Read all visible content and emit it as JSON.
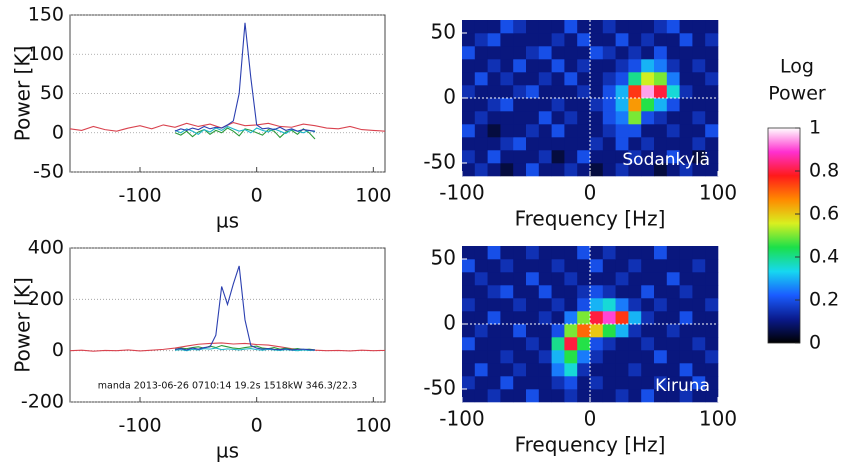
{
  "chart_data": [
    {
      "type": "line",
      "ylabel": "Power [K]",
      "xlabel": "µs",
      "xlim": [
        -160,
        110
      ],
      "ylim": [
        -50,
        150
      ],
      "xticks": [
        -100,
        0,
        100
      ],
      "yticks": [
        -50,
        0,
        50,
        100,
        150
      ],
      "grid": true,
      "series": [
        {
          "color": "#d9434f",
          "x": [
            -160,
            -150,
            -140,
            -130,
            -120,
            -110,
            -100,
            -90,
            -80,
            -70,
            -60,
            -50,
            -40,
            -30,
            -20,
            -10,
            0,
            10,
            20,
            30,
            40,
            50,
            60,
            70,
            80,
            90,
            100,
            110
          ],
          "values": [
            5,
            3,
            8,
            4,
            2,
            6,
            9,
            5,
            10,
            7,
            12,
            8,
            11,
            6,
            13,
            9,
            10,
            12,
            8,
            7,
            11,
            9,
            6,
            5,
            8,
            4,
            3,
            2
          ]
        },
        {
          "color": "#2a9a3a",
          "x": [
            -70,
            -65,
            -60,
            -55,
            -50,
            -45,
            -40,
            -35,
            -30,
            -25,
            -20,
            -15,
            -10,
            -5,
            0,
            5,
            10,
            15,
            20,
            25,
            30,
            35,
            40,
            45,
            50
          ],
          "values": [
            0,
            -3,
            2,
            -5,
            1,
            4,
            -2,
            3,
            0,
            6,
            2,
            -4,
            5,
            3,
            0,
            -3,
            4,
            2,
            -6,
            1,
            3,
            -2,
            5,
            0,
            -8
          ]
        },
        {
          "color": "#1fb5c9",
          "x": [
            -70,
            -65,
            -60,
            -55,
            -50,
            -45,
            -40,
            -35,
            -30,
            -25,
            -20,
            -15,
            -10,
            -5,
            0,
            5,
            10,
            15,
            20,
            25,
            30,
            35,
            40,
            45,
            50
          ],
          "values": [
            3,
            0,
            5,
            2,
            -2,
            4,
            1,
            6,
            3,
            8,
            5,
            2,
            4,
            0,
            6,
            3,
            1,
            5,
            2,
            -1,
            4,
            2,
            0,
            3,
            1
          ]
        },
        {
          "color": "#2b3fb0",
          "x": [
            -70,
            -65,
            -60,
            -55,
            -50,
            -45,
            -40,
            -35,
            -30,
            -25,
            -20,
            -15,
            -10,
            -5,
            0,
            5,
            10,
            15,
            20,
            25,
            30,
            35,
            40,
            45,
            50
          ],
          "values": [
            2,
            5,
            3,
            6,
            4,
            8,
            5,
            7,
            6,
            10,
            15,
            50,
            140,
            70,
            10,
            5,
            6,
            4,
            7,
            3,
            5,
            2,
            4,
            3,
            2
          ]
        }
      ]
    },
    {
      "type": "heatmap",
      "xlabel": "Frequency [Hz]",
      "label": "Sodankylä",
      "xlim": [
        -100,
        100
      ],
      "ylim": [
        -60,
        60
      ],
      "xticks": [
        -100,
        0,
        100
      ],
      "yticks": [
        -50,
        0,
        50
      ],
      "crosshair": true,
      "x": [
        -95,
        -85,
        -75,
        -65,
        -55,
        -45,
        -35,
        -25,
        -15,
        -5,
        5,
        15,
        25,
        35,
        45,
        55,
        65,
        75,
        85,
        95
      ],
      "y": [
        -55,
        -45,
        -35,
        -25,
        -15,
        -5,
        5,
        15,
        25,
        35,
        45,
        55
      ],
      "z": [
        [
          0.1,
          0.15,
          0.1,
          0.05,
          0.1,
          0.2,
          0.1,
          0.1,
          0.15,
          0.1,
          0.05,
          0.1,
          0.15,
          0.1,
          0.1,
          0.05,
          0.1,
          0.15,
          0.1,
          0.1
        ],
        [
          0.15,
          0.1,
          0.2,
          0.1,
          0.1,
          0.1,
          0.15,
          0.05,
          0.1,
          0.2,
          0.1,
          0.1,
          0.1,
          0.15,
          0.1,
          0.1,
          0.2,
          0.1,
          0.05,
          0.1
        ],
        [
          0.1,
          0.1,
          0.1,
          0.15,
          0.2,
          0.1,
          0.1,
          0.1,
          0.1,
          0.1,
          0.15,
          0.1,
          0.2,
          0.1,
          0.15,
          0.1,
          0.1,
          0.1,
          0.15,
          0.1
        ],
        [
          0.2,
          0.1,
          0.05,
          0.1,
          0.1,
          0.15,
          0.1,
          0.2,
          0.1,
          0.1,
          0.1,
          0.15,
          0.2,
          0.2,
          0.1,
          0.1,
          0.15,
          0.1,
          0.1,
          0.2
        ],
        [
          0.1,
          0.15,
          0.1,
          0.1,
          0.1,
          0.1,
          0.2,
          0.1,
          0.15,
          0.1,
          0.1,
          0.2,
          0.25,
          0.5,
          0.2,
          0.15,
          0.1,
          0.1,
          0.15,
          0.1
        ],
        [
          0.1,
          0.1,
          0.15,
          0.2,
          0.1,
          0.1,
          0.1,
          0.15,
          0.1,
          0.1,
          0.15,
          0.2,
          0.3,
          0.65,
          0.45,
          0.3,
          0.2,
          0.1,
          0.1,
          0.1
        ],
        [
          0.15,
          0.1,
          0.1,
          0.1,
          0.15,
          0.2,
          0.1,
          0.1,
          0.1,
          0.15,
          0.1,
          0.2,
          0.3,
          0.75,
          0.95,
          0.8,
          0.35,
          0.15,
          0.1,
          0.1
        ],
        [
          0.1,
          0.2,
          0.1,
          0.15,
          0.1,
          0.1,
          0.15,
          0.1,
          0.2,
          0.1,
          0.1,
          0.15,
          0.2,
          0.4,
          0.55,
          0.5,
          0.25,
          0.1,
          0.1,
          0.15
        ],
        [
          0.1,
          0.1,
          0.15,
          0.1,
          0.2,
          0.1,
          0.1,
          0.2,
          0.1,
          0.15,
          0.1,
          0.1,
          0.15,
          0.2,
          0.3,
          0.25,
          0.15,
          0.1,
          0.15,
          0.1
        ],
        [
          0.2,
          0.1,
          0.1,
          0.1,
          0.1,
          0.15,
          0.2,
          0.1,
          0.1,
          0.1,
          0.2,
          0.15,
          0.1,
          0.15,
          0.1,
          0.2,
          0.1,
          0.1,
          0.1,
          0.1
        ],
        [
          0.1,
          0.15,
          0.2,
          0.1,
          0.1,
          0.1,
          0.1,
          0.15,
          0.1,
          0.2,
          0.1,
          0.1,
          0.2,
          0.1,
          0.15,
          0.1,
          0.1,
          0.2,
          0.1,
          0.15
        ],
        [
          0.1,
          0.1,
          0.1,
          0.2,
          0.15,
          0.1,
          0.1,
          0.1,
          0.2,
          0.1,
          0.1,
          0.15,
          0.1,
          0.1,
          0.1,
          0.15,
          0.2,
          0.1,
          0.1,
          0.1
        ]
      ]
    },
    {
      "type": "line",
      "ylabel": "Power [K]",
      "xlabel": "µs",
      "annotation": "manda 2013-06-26 0710:14 19.2s 1518kW 346.3/22.3",
      "xlim": [
        -160,
        110
      ],
      "ylim": [
        -200,
        400
      ],
      "xticks": [
        -100,
        0,
        100
      ],
      "yticks": [
        -200,
        0,
        200,
        400
      ],
      "grid": true,
      "series": [
        {
          "color": "#d9434f",
          "x": [
            -160,
            -150,
            -140,
            -130,
            -120,
            -110,
            -100,
            -90,
            -80,
            -70,
            -60,
            -50,
            -40,
            -30,
            -20,
            -10,
            0,
            10,
            20,
            30,
            40,
            50,
            60,
            70,
            80,
            90,
            100,
            110
          ],
          "values": [
            0,
            2,
            -2,
            1,
            0,
            3,
            -1,
            2,
            5,
            10,
            18,
            25,
            28,
            30,
            26,
            28,
            24,
            22,
            15,
            8,
            4,
            2,
            0,
            1,
            -1,
            2,
            0,
            1
          ]
        },
        {
          "color": "#2a9a3a",
          "x": [
            -70,
            -65,
            -60,
            -55,
            -50,
            -45,
            -40,
            -35,
            -30,
            -25,
            -20,
            -15,
            -10,
            -5,
            0,
            5,
            10,
            15,
            20,
            25,
            30,
            35,
            40,
            45,
            50
          ],
          "values": [
            5,
            10,
            8,
            12,
            15,
            10,
            18,
            12,
            20,
            15,
            10,
            8,
            12,
            15,
            18,
            10,
            8,
            12,
            6,
            10,
            5,
            8,
            4,
            6,
            3
          ]
        },
        {
          "color": "#1fb5c9",
          "x": [
            -70,
            -65,
            -60,
            -55,
            -50,
            -45,
            -40,
            -35,
            -30,
            -25,
            -20,
            -15,
            -10,
            -5,
            0,
            5,
            10,
            15,
            20,
            25,
            30,
            35,
            40,
            45,
            50
          ],
          "values": [
            2,
            4,
            0,
            5,
            3,
            8,
            6,
            10,
            4,
            7,
            5,
            3,
            6,
            8,
            4,
            2,
            5,
            3,
            1,
            4,
            2,
            0,
            3,
            1,
            2
          ]
        },
        {
          "color": "#2b3fb0",
          "x": [
            -70,
            -65,
            -60,
            -55,
            -50,
            -45,
            -40,
            -35,
            -30,
            -25,
            -20,
            -15,
            -10,
            -5,
            0,
            5,
            10,
            15,
            20,
            25,
            30,
            35,
            40,
            45,
            50
          ],
          "values": [
            5,
            8,
            3,
            10,
            6,
            12,
            15,
            60,
            250,
            180,
            260,
            330,
            120,
            20,
            10,
            6,
            8,
            5,
            4,
            7,
            3,
            5,
            6,
            4,
            3
          ]
        }
      ]
    },
    {
      "type": "heatmap",
      "xlabel": "Frequency [Hz]",
      "label": "Kiruna",
      "xlim": [
        -100,
        100
      ],
      "ylim": [
        -60,
        60
      ],
      "xticks": [
        -100,
        0,
        100
      ],
      "yticks": [
        -50,
        0,
        50
      ],
      "crosshair": true,
      "x": [
        -95,
        -85,
        -75,
        -65,
        -55,
        -45,
        -35,
        -25,
        -15,
        -5,
        5,
        15,
        25,
        35,
        45,
        55,
        65,
        75,
        85,
        95
      ],
      "y": [
        -55,
        -45,
        -35,
        -25,
        -15,
        -5,
        5,
        15,
        25,
        35,
        45,
        55
      ],
      "z": [
        [
          0.1,
          0.1,
          0.15,
          0.1,
          0.1,
          0.2,
          0.1,
          0.1,
          0.15,
          0.1,
          0.1,
          0.1,
          0.15,
          0.1,
          0.2,
          0.1,
          0.1,
          0.15,
          0.1,
          0.1
        ],
        [
          0.15,
          0.1,
          0.1,
          0.2,
          0.1,
          0.1,
          0.1,
          0.15,
          0.2,
          0.1,
          0.15,
          0.1,
          0.1,
          0.1,
          0.1,
          0.15,
          0.1,
          0.1,
          0.2,
          0.1
        ],
        [
          0.1,
          0.2,
          0.1,
          0.1,
          0.15,
          0.1,
          0.1,
          0.25,
          0.35,
          0.15,
          0.1,
          0.1,
          0.1,
          0.15,
          0.1,
          0.1,
          0.1,
          0.2,
          0.1,
          0.1
        ],
        [
          0.1,
          0.1,
          0.1,
          0.15,
          0.1,
          0.1,
          0.15,
          0.3,
          0.45,
          0.25,
          0.15,
          0.1,
          0.1,
          0.1,
          0.1,
          0.2,
          0.1,
          0.1,
          0.1,
          0.15
        ],
        [
          0.2,
          0.1,
          0.1,
          0.1,
          0.1,
          0.15,
          0.1,
          0.4,
          0.8,
          0.45,
          0.2,
          0.15,
          0.1,
          0.1,
          0.15,
          0.1,
          0.1,
          0.1,
          0.15,
          0.1
        ],
        [
          0.1,
          0.15,
          0.1,
          0.1,
          0.2,
          0.1,
          0.1,
          0.2,
          0.5,
          0.7,
          0.6,
          0.45,
          0.3,
          0.15,
          0.1,
          0.1,
          0.15,
          0.1,
          0.1,
          0.1
        ],
        [
          0.1,
          0.1,
          0.2,
          0.1,
          0.1,
          0.1,
          0.15,
          0.1,
          0.25,
          0.5,
          0.8,
          0.9,
          0.75,
          0.3,
          0.15,
          0.1,
          0.1,
          0.2,
          0.1,
          0.1
        ],
        [
          0.15,
          0.1,
          0.1,
          0.1,
          0.15,
          0.1,
          0.1,
          0.15,
          0.1,
          0.2,
          0.3,
          0.35,
          0.25,
          0.15,
          0.1,
          0.15,
          0.1,
          0.1,
          0.1,
          0.15
        ],
        [
          0.1,
          0.1,
          0.15,
          0.2,
          0.1,
          0.1,
          0.2,
          0.1,
          0.1,
          0.15,
          0.2,
          0.15,
          0.1,
          0.1,
          0.2,
          0.1,
          0.1,
          0.15,
          0.1,
          0.1
        ],
        [
          0.1,
          0.15,
          0.1,
          0.1,
          0.1,
          0.2,
          0.1,
          0.1,
          0.15,
          0.1,
          0.1,
          0.1,
          0.15,
          0.1,
          0.1,
          0.1,
          0.2,
          0.1,
          0.1,
          0.1
        ],
        [
          0.2,
          0.1,
          0.1,
          0.15,
          0.1,
          0.1,
          0.1,
          0.15,
          0.1,
          0.1,
          0.2,
          0.1,
          0.1,
          0.15,
          0.1,
          0.1,
          0.1,
          0.1,
          0.15,
          0.1
        ],
        [
          0.1,
          0.1,
          0.2,
          0.1,
          0.1,
          0.15,
          0.1,
          0.1,
          0.1,
          0.2,
          0.1,
          0.15,
          0.1,
          0.1,
          0.1,
          0.2,
          0.1,
          0.1,
          0.1,
          0.1
        ]
      ]
    }
  ],
  "colorbar": {
    "title": [
      "Log",
      "Power"
    ],
    "lim": [
      0,
      1
    ],
    "ticks": [
      0,
      0.2,
      0.4,
      0.6,
      0.8,
      1
    ],
    "colormap": [
      "#000000",
      "#0a1a8c",
      "#1a5cff",
      "#16d8f0",
      "#1be04a",
      "#d8f020",
      "#ff8a00",
      "#ff1a1a",
      "#ff30d0",
      "#ffffff"
    ]
  }
}
